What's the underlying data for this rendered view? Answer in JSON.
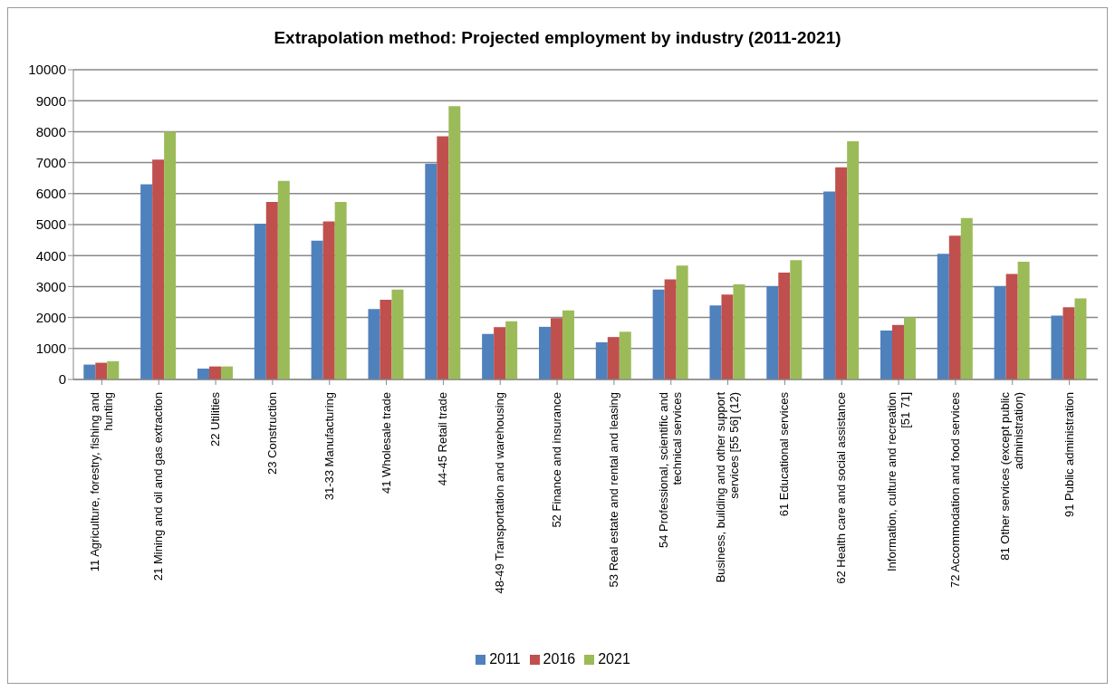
{
  "chart_data": {
    "type": "bar",
    "title": "Extrapolation method: Projected employment by industry (2011-2021)",
    "categories": [
      "11 Agriculture, forestry, fishing and hunting",
      "21 Mining and oil and gas extraction",
      "22 Utilities",
      "23 Construction",
      "31-33 Manufacturing",
      "41 Wholesale trade",
      "44-45 Retail trade",
      "48-49 Transportation and warehousing",
      "52 Finance and insurance",
      "53 Real estate and rental and leasing",
      "54 Professional, scientific and technical services",
      "Business, building and other support services [55 56]  (12)",
      "61 Educational services",
      "62 Health care and social assistance",
      "Information, culture and recreation [51 71]",
      "72 Accommodation and food services",
      "81 Other services (except public administration)",
      "91 Public administration"
    ],
    "series": [
      {
        "name": "2011",
        "color": "#4f81bd",
        "values": [
          480,
          6300,
          350,
          5030,
          4480,
          2270,
          6970,
          1470,
          1700,
          1200,
          2900,
          2390,
          3010,
          6070,
          1580,
          4060,
          3010,
          2060
        ]
      },
      {
        "name": "2016",
        "color": "#c0504d",
        "values": [
          540,
          7100,
          420,
          5730,
          5100,
          2570,
          7850,
          1690,
          1980,
          1370,
          3230,
          2740,
          3450,
          6850,
          1760,
          4640,
          3410,
          2330
        ]
      },
      {
        "name": "2021",
        "color": "#9bbb59",
        "values": [
          590,
          8000,
          420,
          6410,
          5730,
          2900,
          8820,
          1880,
          2230,
          1540,
          3680,
          3070,
          3850,
          7690,
          2000,
          5210,
          3800,
          2620
        ]
      }
    ],
    "ylim": [
      0,
      10000
    ],
    "yticks": [
      0,
      1000,
      2000,
      3000,
      4000,
      5000,
      6000,
      7000,
      8000,
      9000,
      10000
    ],
    "grid": "y",
    "legend": "bottom"
  }
}
